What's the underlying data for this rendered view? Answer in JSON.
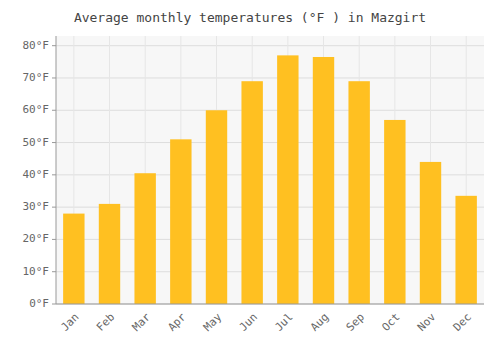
{
  "chart_data": {
    "type": "bar",
    "title": "Average monthly temperatures (°F ) in Mazgirt",
    "categories": [
      "Jan",
      "Feb",
      "Mar",
      "Apr",
      "May",
      "Jun",
      "Jul",
      "Aug",
      "Sep",
      "Oct",
      "Nov",
      "Dec"
    ],
    "values": [
      28,
      31,
      40.5,
      51,
      60,
      69,
      77,
      76.5,
      69,
      57,
      44,
      33.5
    ],
    "color": "#FFC021",
    "ylim": [
      0,
      83
    ],
    "yticks": [
      {
        "value": 0,
        "label": "0°F"
      },
      {
        "value": 10,
        "label": "10°F"
      },
      {
        "value": 20,
        "label": "20°F"
      },
      {
        "value": 30,
        "label": "30°F"
      },
      {
        "value": 40,
        "label": "40°F"
      },
      {
        "value": 50,
        "label": "50°F"
      },
      {
        "value": 60,
        "label": "60°F"
      },
      {
        "value": 70,
        "label": "70°F"
      },
      {
        "value": 80,
        "label": "80°F"
      }
    ],
    "grid": true
  }
}
